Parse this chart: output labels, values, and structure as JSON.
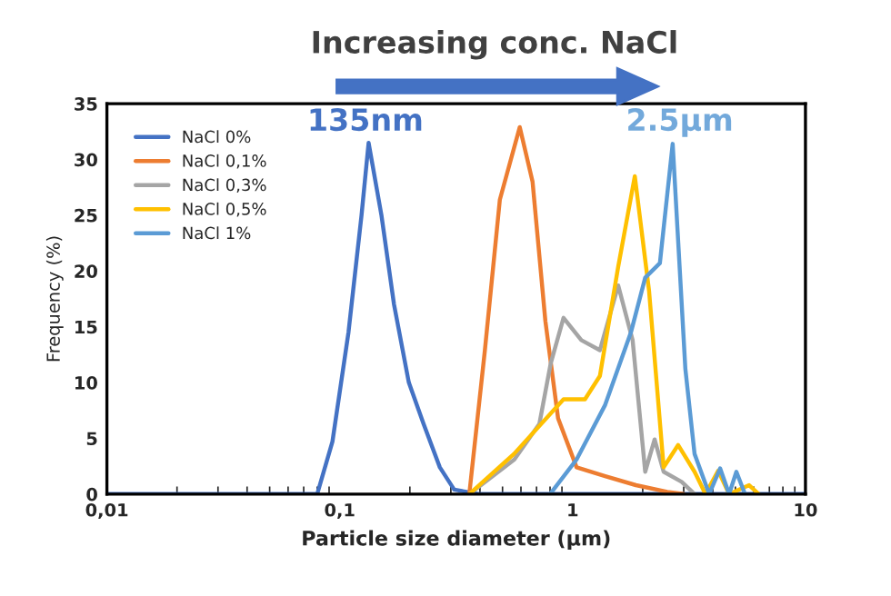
{
  "chart_data": {
    "type": "line",
    "title": "Increasing conc. NaCl",
    "xlabel": "Particle size diameter (µm)",
    "ylabel": "Frequency (%)",
    "log": "x",
    "xlim": [
      0.01,
      10
    ],
    "xticks": [
      {
        "value": 0.01,
        "label": "0,01"
      },
      {
        "value": 0.1,
        "label": "0,1"
      },
      1,
      10
    ],
    "ylim": [
      0,
      35
    ],
    "yticks": [
      0,
      5,
      10,
      15,
      20,
      25,
      30,
      35
    ],
    "grid": false,
    "legend": "top left",
    "marker": "none",
    "line_style": "solid",
    "annotations": [
      "135nm",
      "2.5µm"
    ],
    "series": [
      {
        "name": "NaCl 0%",
        "color": "#4472c4",
        "x": [
          0.01,
          0.08,
          0.093,
          0.109,
          0.124,
          0.133,
          0.151,
          0.171,
          0.198,
          0.229,
          0.269,
          0.31,
          0.35,
          0.4,
          10
        ],
        "values": [
          0,
          0,
          4.7,
          14.5,
          25,
          31.5,
          25,
          17,
          10,
          6.3,
          2.4,
          0.4,
          0.2,
          0,
          0
        ]
      },
      {
        "name": "NaCl 0,1%",
        "color": "#ed7d31",
        "x": [
          0.36,
          0.42,
          0.487,
          0.593,
          0.673,
          0.764,
          0.866,
          1.04,
          1.38,
          1.87,
          2.55,
          3.0
        ],
        "values": [
          0,
          12.9,
          26.4,
          32.9,
          28,
          15.5,
          6.8,
          2.4,
          1.6,
          0.8,
          0.2,
          0
        ]
      },
      {
        "name": "NaCl 0,3%",
        "color": "#a5a5a5",
        "x": [
          0.36,
          0.562,
          0.72,
          0.805,
          0.914,
          1.09,
          1.31,
          1.57,
          1.81,
          2.05,
          2.25,
          2.46,
          2.94,
          3.34
        ],
        "values": [
          0,
          3.1,
          6.3,
          11.7,
          15.8,
          13.8,
          12.9,
          18.7,
          13.8,
          2.0,
          4.9,
          2.0,
          1.1,
          0
        ]
      },
      {
        "name": "NaCl 0,5%",
        "color": "#ffc000",
        "x": [
          0.36,
          0.56,
          0.914,
          1.13,
          1.31,
          1.57,
          1.85,
          2.13,
          2.46,
          2.84,
          3.34,
          3.72,
          4.22,
          4.7,
          5.73,
          6.3
        ],
        "values": [
          0,
          3.6,
          8.5,
          8.5,
          10.6,
          20.4,
          28.5,
          18.2,
          2.4,
          4.4,
          2.0,
          0,
          2.1,
          0,
          0.8,
          0
        ]
      },
      {
        "name": "NaCl 1%",
        "color": "#5b9bd5",
        "x": [
          0.8,
          1.04,
          1.38,
          1.78,
          2.05,
          2.37,
          2.69,
          3.05,
          3.34,
          3.86,
          4.3,
          4.7,
          5.05,
          5.5
        ],
        "values": [
          0,
          3.1,
          8,
          14.5,
          19.4,
          20.7,
          31.4,
          11.2,
          3.6,
          0,
          2.3,
          0,
          2.0,
          0
        ]
      }
    ]
  }
}
